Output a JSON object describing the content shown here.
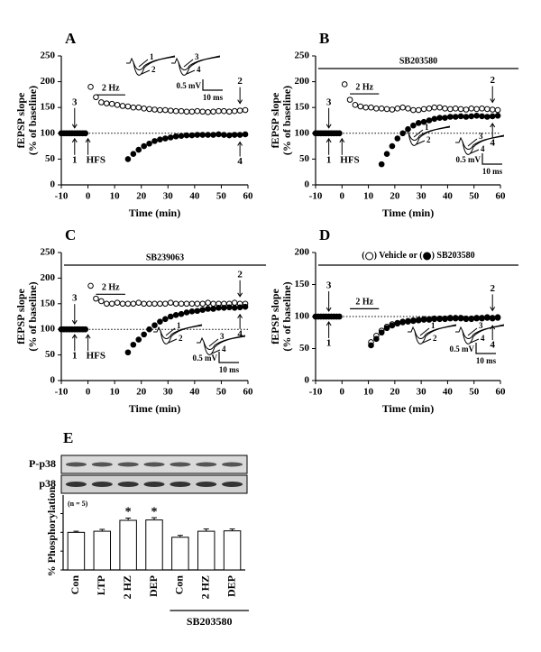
{
  "chart_data": [
    {
      "type": "scatter",
      "label": "A",
      "xlabel": "Time (min)",
      "ylabel": [
        "fEPSP slope",
        "(% of baseline)"
      ],
      "xlim": [
        -10,
        60
      ],
      "xticks": [
        -10,
        0,
        10,
        20,
        30,
        40,
        50,
        60
      ],
      "ylim": [
        0,
        250
      ],
      "yticks": [
        0,
        50,
        100,
        150,
        200,
        250
      ],
      "hline": 100,
      "stim_label": "2 Hz",
      "induction_label": "HFS",
      "markers": [
        "1",
        "2",
        "3",
        "4"
      ],
      "scale_labels": [
        "0.5 mV",
        "10 ms"
      ],
      "series": [
        {
          "marker": "open",
          "color": "#000",
          "x": [
            -10,
            -9,
            -8,
            -7,
            -6,
            -5,
            -4,
            -3,
            -2,
            -1,
            1,
            3,
            5,
            7,
            9,
            11,
            13,
            15,
            17,
            19,
            21,
            23,
            25,
            27,
            29,
            31,
            33,
            35,
            37,
            39,
            41,
            43,
            45,
            47,
            49,
            51,
            53,
            55,
            57,
            59
          ],
          "values": [
            100,
            100,
            100,
            100,
            100,
            100,
            100,
            100,
            100,
            100,
            190,
            170,
            160,
            158,
            157,
            155,
            153,
            152,
            150,
            150,
            148,
            147,
            146,
            145,
            145,
            144,
            143,
            143,
            142,
            142,
            143,
            142,
            141,
            142,
            143,
            143,
            142,
            143,
            144,
            145
          ]
        },
        {
          "marker": "filled",
          "color": "#000",
          "x": [
            -10,
            -9,
            -8,
            -7,
            -6,
            -5,
            -4,
            -3,
            -2,
            -1,
            15,
            17,
            19,
            21,
            23,
            25,
            27,
            29,
            31,
            33,
            35,
            37,
            39,
            41,
            43,
            45,
            47,
            49,
            51,
            53,
            55,
            57,
            59
          ],
          "values": [
            100,
            100,
            100,
            100,
            100,
            100,
            100,
            100,
            100,
            100,
            50,
            60,
            68,
            75,
            80,
            85,
            88,
            90,
            92,
            94,
            95,
            96,
            96,
            97,
            97,
            97,
            97,
            98,
            97,
            96,
            97,
            97,
            98
          ]
        }
      ]
    },
    {
      "type": "scatter",
      "label": "B",
      "drug": "SB203580",
      "xlabel": "Time (min)",
      "ylabel": [
        "fEPSP slope",
        "(% of baseline)"
      ],
      "xlim": [
        -10,
        60
      ],
      "xticks": [
        -10,
        0,
        10,
        20,
        30,
        40,
        50,
        60
      ],
      "ylim": [
        0,
        250
      ],
      "yticks": [
        0,
        50,
        100,
        150,
        200,
        250
      ],
      "hline": 100,
      "stim_label": "2 Hz",
      "induction_label": "HFS",
      "markers": [
        "1",
        "2",
        "3",
        "4"
      ],
      "scale_labels": [
        "0.5 mV",
        "10 ms"
      ],
      "series": [
        {
          "marker": "open",
          "color": "#000",
          "x": [
            -10,
            -9,
            -8,
            -7,
            -6,
            -5,
            -4,
            -3,
            -2,
            -1,
            1,
            3,
            5,
            7,
            9,
            11,
            13,
            15,
            17,
            19,
            21,
            23,
            25,
            27,
            29,
            31,
            33,
            35,
            37,
            39,
            41,
            43,
            45,
            47,
            49,
            51,
            53,
            55,
            57,
            59
          ],
          "values": [
            100,
            100,
            100,
            100,
            100,
            100,
            100,
            100,
            100,
            100,
            195,
            165,
            155,
            152,
            150,
            150,
            148,
            148,
            147,
            146,
            148,
            150,
            148,
            145,
            145,
            147,
            148,
            150,
            150,
            148,
            147,
            148,
            147,
            146,
            148,
            147,
            148,
            147,
            146,
            145
          ]
        },
        {
          "marker": "filled",
          "color": "#000",
          "x": [
            -10,
            -9,
            -8,
            -7,
            -6,
            -5,
            -4,
            -3,
            -2,
            -1,
            15,
            17,
            19,
            21,
            23,
            25,
            27,
            29,
            31,
            33,
            35,
            37,
            39,
            41,
            43,
            45,
            47,
            49,
            51,
            53,
            55,
            57,
            59
          ],
          "values": [
            100,
            100,
            100,
            100,
            100,
            100,
            100,
            100,
            100,
            100,
            40,
            60,
            75,
            90,
            100,
            108,
            115,
            120,
            122,
            125,
            128,
            130,
            130,
            132,
            132,
            133,
            132,
            133,
            134,
            133,
            132,
            133,
            134
          ]
        }
      ]
    },
    {
      "type": "scatter",
      "label": "C",
      "drug": "SB239063",
      "xlabel": "Time (min)",
      "ylabel": [
        "fEPSP slope",
        "(% of baseline)"
      ],
      "xlim": [
        -10,
        60
      ],
      "xticks": [
        -10,
        0,
        10,
        20,
        30,
        40,
        50,
        60
      ],
      "ylim": [
        0,
        250
      ],
      "yticks": [
        0,
        50,
        100,
        150,
        200,
        250
      ],
      "hline": 100,
      "stim_label": "2 Hz",
      "induction_label": "HFS",
      "markers": [
        "1",
        "2",
        "3",
        "4"
      ],
      "scale_labels": [
        "0.5 mV",
        "10 ms"
      ],
      "series": [
        {
          "marker": "open",
          "color": "#000",
          "x": [
            -10,
            -9,
            -8,
            -7,
            -6,
            -5,
            -4,
            -3,
            -2,
            -1,
            1,
            3,
            5,
            7,
            9,
            11,
            13,
            15,
            17,
            19,
            21,
            23,
            25,
            27,
            29,
            31,
            33,
            35,
            37,
            39,
            41,
            43,
            45,
            47,
            49,
            51,
            53,
            55,
            57,
            59
          ],
          "values": [
            100,
            100,
            100,
            100,
            100,
            100,
            100,
            100,
            100,
            100,
            185,
            160,
            155,
            150,
            150,
            152,
            150,
            150,
            150,
            152,
            150,
            150,
            150,
            150,
            150,
            152,
            150,
            150,
            150,
            150,
            150,
            150,
            152,
            150,
            150,
            150,
            150,
            152,
            150,
            150
          ]
        },
        {
          "marker": "filled",
          "color": "#000",
          "x": [
            -10,
            -9,
            -8,
            -7,
            -6,
            -5,
            -4,
            -3,
            -2,
            -1,
            15,
            17,
            19,
            21,
            23,
            25,
            27,
            29,
            31,
            33,
            35,
            37,
            39,
            41,
            43,
            45,
            47,
            49,
            51,
            53,
            55,
            57,
            59
          ],
          "values": [
            100,
            100,
            100,
            100,
            100,
            100,
            100,
            100,
            100,
            100,
            55,
            70,
            80,
            90,
            100,
            108,
            115,
            120,
            125,
            128,
            130,
            133,
            135,
            136,
            138,
            140,
            140,
            142,
            142,
            143,
            142,
            143,
            144
          ]
        }
      ]
    },
    {
      "type": "scatter",
      "label": "D",
      "legend_text": [
        "(",
        ") Vehicle or (",
        ") SB203580"
      ],
      "xlabel": "Time (min)",
      "ylabel": [
        "fEPSP slope",
        "(% of baseline)"
      ],
      "xlim": [
        -10,
        60
      ],
      "xticks": [
        -10,
        0,
        10,
        20,
        30,
        40,
        50,
        60
      ],
      "ylim": [
        0,
        200
      ],
      "yticks": [
        0,
        50,
        100,
        150,
        200
      ],
      "hline": 100,
      "stim_label": "2 Hz",
      "markers": [
        "1",
        "2",
        "3",
        "4"
      ],
      "scale_labels": [
        "0.5 mV",
        "10 ms"
      ],
      "series": [
        {
          "marker": "open",
          "color": "#000",
          "x": [
            -10,
            -9,
            -8,
            -7,
            -6,
            -5,
            -4,
            -3,
            -2,
            -1,
            11,
            13,
            15,
            17,
            19,
            21,
            23,
            25,
            27,
            29,
            31,
            33,
            35,
            37,
            39,
            41,
            43,
            45,
            47,
            49,
            51,
            53,
            55,
            57,
            59
          ],
          "values": [
            100,
            100,
            100,
            100,
            100,
            100,
            100,
            100,
            100,
            100,
            60,
            70,
            78,
            84,
            88,
            90,
            92,
            93,
            94,
            95,
            96,
            96,
            97,
            97,
            97,
            98,
            98,
            98,
            97,
            97,
            98,
            98,
            99,
            98,
            99
          ]
        },
        {
          "marker": "filled",
          "color": "#000",
          "x": [
            -10,
            -9,
            -8,
            -7,
            -6,
            -5,
            -4,
            -3,
            -2,
            -1,
            11,
            13,
            15,
            17,
            19,
            21,
            23,
            25,
            27,
            29,
            31,
            33,
            35,
            37,
            39,
            41,
            43,
            45,
            47,
            49,
            51,
            53,
            55,
            57,
            59
          ],
          "values": [
            100,
            100,
            100,
            100,
            100,
            100,
            100,
            100,
            100,
            100,
            55,
            65,
            75,
            82,
            86,
            89,
            91,
            92,
            93,
            94,
            95,
            95,
            96,
            96,
            96,
            97,
            97,
            97,
            96,
            96,
            97,
            97,
            98,
            97,
            98
          ]
        }
      ]
    },
    {
      "type": "bar",
      "label": "E",
      "ylabel": "% Phosphorylation",
      "blot_labels": [
        "P-p38",
        "p38"
      ],
      "categories": [
        "Con",
        "LTP",
        "2 HZ",
        "DEP",
        "Con",
        "2 HZ",
        "DEP"
      ],
      "values": [
        100,
        103,
        132,
        133,
        87,
        103,
        104
      ],
      "errors": [
        3,
        5,
        6,
        6,
        5,
        6,
        5
      ],
      "significance": [
        null,
        null,
        "*",
        "*",
        null,
        null,
        null
      ],
      "n_label": "(n = 5)",
      "group_label": "SB203580",
      "color": "#fff",
      "ylim": [
        0,
        180
      ],
      "yticks": [
        0,
        50,
        100,
        150
      ]
    }
  ]
}
